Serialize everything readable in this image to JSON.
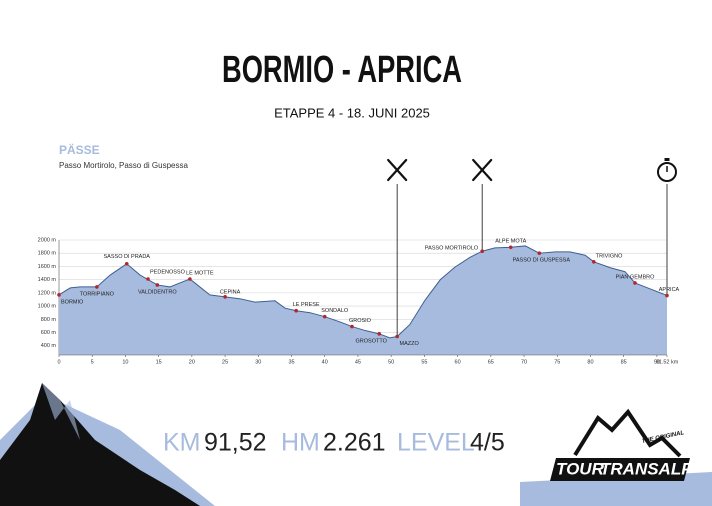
{
  "header": {
    "title": "BORMIO - APRICA",
    "subtitle": "ETAPPE 4 - 18. JUNI 2025",
    "passes_title": "PÄSSE",
    "passes": "Passo Mortirolo, Passo di Guspessa"
  },
  "chart_data": {
    "type": "area",
    "color": "#a7bbde",
    "line_color": "#3f5f92",
    "grid": true,
    "x": [
      0,
      1.7,
      3.2,
      5.7,
      7.7,
      10.2,
      12.2,
      14.8,
      16.7,
      18.2,
      19.7,
      21.2,
      22.7,
      25.0,
      27.3,
      29.5,
      32.5,
      34.0,
      35.7,
      37.8,
      40.0,
      42.3,
      44.1,
      46.1,
      48.2,
      49.8,
      50.9,
      52.8,
      55.1,
      57.4,
      59.6,
      61.9,
      63.7,
      65.6,
      68.0,
      70.2,
      72.3,
      74.7,
      76.9,
      79.2,
      80.5,
      83.0,
      85.2,
      86.7,
      89.0,
      91.52
    ],
    "values": [
      1170,
      1275,
      1290,
      1290,
      1470,
      1640,
      1470,
      1320,
      1290,
      1350,
      1410,
      1290,
      1170,
      1140,
      1110,
      1060,
      1080,
      970,
      930,
      900,
      840,
      760,
      690,
      630,
      580,
      520,
      540,
      720,
      1090,
      1400,
      1590,
      1740,
      1830,
      1880,
      1890,
      1910,
      1800,
      1820,
      1820,
      1770,
      1670,
      1580,
      1520,
      1350,
      1260,
      1160
    ],
    "waypoints": [
      {
        "label": "BORMIO",
        "x": 0,
        "value": 1170
      },
      {
        "label": "TORRIPIANO",
        "x": 5.7,
        "value": 1290
      },
      {
        "label": "SASSO DI PRADA",
        "x": 10.2,
        "value": 1640
      },
      {
        "label": "PEDENOSSO",
        "x": 13.4,
        "value": 1410
      },
      {
        "label": "VALDIDENTRO",
        "x": 14.8,
        "value": 1320
      },
      {
        "label": "LE MOTTE",
        "x": 19.7,
        "value": 1410
      },
      {
        "label": "CEPINA",
        "x": 25.0,
        "value": 1140
      },
      {
        "label": "LE PRESE",
        "x": 35.7,
        "value": 930
      },
      {
        "label": "SONDALO",
        "x": 40.0,
        "value": 840
      },
      {
        "label": "GROSIO",
        "x": 44.1,
        "value": 690
      },
      {
        "label": "GROSOTTO",
        "x": 48.2,
        "value": 580
      },
      {
        "label": "MAZZO",
        "x": 50.9,
        "value": 540
      },
      {
        "label": "PASSO MORTIROLO",
        "x": 63.7,
        "value": 1830
      },
      {
        "label": "ALPE MOTA",
        "x": 68.0,
        "value": 1890
      },
      {
        "label": "PASSO DI GUSPESSA",
        "x": 72.3,
        "value": 1800
      },
      {
        "label": "TRIVIGNO",
        "x": 80.5,
        "value": 1670
      },
      {
        "label": "PIAN GEMBRO",
        "x": 86.7,
        "value": 1350
      },
      {
        "label": "APRICA",
        "x": 91.52,
        "value": 1160
      }
    ],
    "xlim": [
      0,
      91.52
    ],
    "xticks": [
      0,
      5,
      10,
      15,
      20,
      25,
      30,
      35,
      40,
      45,
      50,
      55,
      60,
      65,
      70,
      75,
      80,
      85,
      90,
      {
        "value": 91.52,
        "label": "91.52 km"
      }
    ],
    "ylim": [
      260,
      2000
    ],
    "yticks": [
      {
        "value": 400,
        "label": "400 m"
      },
      {
        "value": 600,
        "label": "600 m"
      },
      {
        "value": 800,
        "label": "800 m"
      },
      {
        "value": 1000,
        "label": "1000 m"
      },
      {
        "value": 1200,
        "label": "1200 m"
      },
      {
        "value": 1400,
        "label": "1400 m"
      },
      {
        "value": 1600,
        "label": "1600 m"
      },
      {
        "value": 1800,
        "label": "1800 m"
      },
      {
        "value": 2000,
        "label": "2000 m"
      }
    ]
  },
  "stats": [
    {
      "label": "KM",
      "value": "91,52"
    },
    {
      "label": "HM",
      "value": "2.261"
    },
    {
      "label": "LEVEL",
      "value": "4/5"
    }
  ],
  "logo": {
    "tag": "THE ORIGINAL",
    "word1": "TOUR",
    "word2": "TRANSALP"
  }
}
